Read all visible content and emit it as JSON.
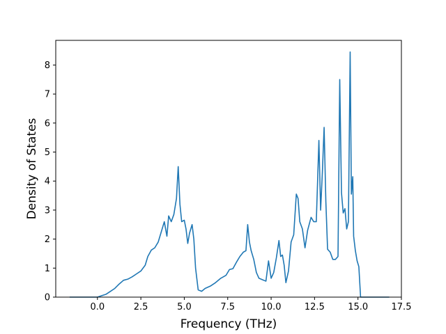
{
  "chart_data": {
    "type": "line",
    "title": "",
    "xlabel": "Frequency (THz)",
    "ylabel": "Density of States",
    "xlim": [
      -2.4,
      17.5
    ],
    "ylim": [
      0,
      8.85
    ],
    "xticks": [
      0.0,
      2.5,
      5.0,
      7.5,
      10.0,
      12.5,
      15.0,
      17.5
    ],
    "xtick_labels": [
      "0.0",
      "2.5",
      "5.0",
      "7.5",
      "10.0",
      "12.5",
      "15.0",
      "17.5"
    ],
    "yticks": [
      0,
      1,
      2,
      3,
      4,
      5,
      6,
      7,
      8
    ],
    "ytick_labels": [
      "0",
      "1",
      "2",
      "3",
      "4",
      "5",
      "6",
      "7",
      "8"
    ],
    "grid": false,
    "legend": "none",
    "colors": {
      "series": "#1f77b4",
      "axes": "#000000",
      "background": "#ffffff"
    },
    "series": [
      {
        "name": "",
        "x": [
          -1.6,
          -1.0,
          -0.5,
          0.0,
          0.25,
          0.5,
          0.75,
          1.0,
          1.25,
          1.5,
          1.75,
          2.0,
          2.25,
          2.5,
          2.75,
          2.9,
          3.1,
          3.3,
          3.5,
          3.7,
          3.85,
          4.0,
          4.1,
          4.25,
          4.4,
          4.55,
          4.65,
          4.75,
          4.85,
          5.0,
          5.1,
          5.2,
          5.3,
          5.45,
          5.55,
          5.65,
          5.8,
          6.0,
          6.2,
          6.5,
          6.8,
          7.1,
          7.4,
          7.6,
          7.8,
          8.0,
          8.2,
          8.4,
          8.55,
          8.65,
          8.75,
          8.85,
          9.0,
          9.15,
          9.3,
          9.5,
          9.7,
          9.85,
          10.0,
          10.15,
          10.3,
          10.45,
          10.55,
          10.65,
          10.75,
          10.85,
          11.0,
          11.15,
          11.3,
          11.45,
          11.55,
          11.65,
          11.8,
          11.95,
          12.1,
          12.3,
          12.45,
          12.6,
          12.75,
          12.85,
          12.95,
          13.05,
          13.15,
          13.25,
          13.4,
          13.55,
          13.7,
          13.85,
          13.95,
          14.05,
          14.15,
          14.25,
          14.35,
          14.45,
          14.55,
          14.62,
          14.7,
          14.75,
          14.85,
          14.95,
          15.05,
          15.15,
          15.25,
          15.4,
          16.0,
          16.8
        ],
        "y": [
          0.0,
          0.0,
          0.0,
          0.0,
          0.05,
          0.1,
          0.2,
          0.3,
          0.45,
          0.58,
          0.62,
          0.7,
          0.8,
          0.9,
          1.1,
          1.4,
          1.62,
          1.7,
          1.9,
          2.3,
          2.6,
          2.1,
          2.8,
          2.6,
          2.85,
          3.4,
          4.5,
          3.2,
          2.6,
          2.65,
          2.35,
          1.85,
          2.2,
          2.5,
          2.0,
          1.0,
          0.25,
          0.2,
          0.3,
          0.38,
          0.5,
          0.65,
          0.75,
          0.95,
          0.98,
          1.2,
          1.4,
          1.55,
          1.6,
          2.5,
          1.9,
          1.6,
          1.3,
          0.85,
          0.65,
          0.6,
          0.55,
          1.25,
          0.65,
          0.85,
          1.35,
          1.95,
          1.4,
          1.45,
          1.1,
          0.5,
          0.9,
          1.9,
          2.15,
          3.55,
          3.4,
          2.6,
          2.35,
          1.7,
          2.3,
          2.75,
          2.6,
          2.6,
          5.4,
          3.0,
          4.3,
          5.85,
          3.3,
          1.65,
          1.55,
          1.3,
          1.3,
          1.4,
          7.5,
          3.6,
          2.9,
          3.05,
          2.35,
          2.6,
          8.45,
          3.55,
          4.15,
          2.1,
          1.6,
          1.25,
          1.05,
          0.0,
          0.0,
          0.0,
          0.0,
          0.0
        ]
      }
    ]
  }
}
